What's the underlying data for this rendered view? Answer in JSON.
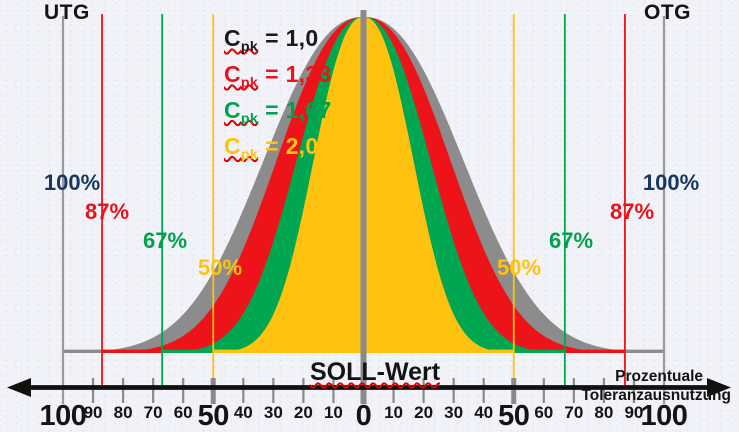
{
  "labels": {
    "utg": "UTG",
    "otg": "OTG",
    "soll_wert": "SOLL-Wert",
    "axis_label_line1": "Prozentuale",
    "axis_label_line2": "Toleranzausnutzung"
  },
  "legend": {
    "symbol": "C",
    "subscript": "pk",
    "equals": "="
  },
  "colors": {
    "axis": "#111111",
    "tick": "#8A8A8A",
    "center_line": "#8A8A8A",
    "squiggle": "#E00000",
    "background": "#F2F3F8",
    "text": "#141414"
  },
  "chart_data": {
    "type": "area",
    "title": "",
    "curve_shape": "bell",
    "peaks_equal_height": true,
    "grid": false,
    "legend_position": "top-center",
    "x_axis": {
      "label_line1": "Prozentuale",
      "label_line2": "Toleranzausnutzung",
      "range": [
        -100,
        100
      ],
      "tick_step": 10,
      "tick_labels": [
        "100",
        "90",
        "80",
        "70",
        "60",
        "50",
        "40",
        "30",
        "20",
        "10",
        "0",
        "10",
        "20",
        "30",
        "40",
        "50",
        "60",
        "70",
        "80",
        "90",
        "100"
      ],
      "major_tick_values": [
        -100,
        -50,
        0,
        50,
        100
      ],
      "center_label": "SOLL-Wert",
      "lower_limit_label": "UTG",
      "upper_limit_label": "OTG"
    },
    "series": [
      {
        "name": "Cpk = 1,0",
        "cpk_label": "= 1,0",
        "cpk_value": 1.0,
        "tolerance_use_pct": 100,
        "tolerance_label": "100%",
        "fill_color": "#8C8C8C",
        "line_color": "#9B9B9B",
        "label_color": "#17375E",
        "legend_color": "#1A1A1A"
      },
      {
        "name": "Cpk = 1,33",
        "cpk_label": "= 1,33",
        "cpk_value": 1.33,
        "tolerance_use_pct": 87,
        "tolerance_label": "87%",
        "fill_color": "#EE1219",
        "line_color": "#EE1219",
        "label_color": "#E8131B",
        "legend_color": "#E8131B"
      },
      {
        "name": "Cpk = 1,67",
        "cpk_label": "= 1,67",
        "cpk_value": 1.67,
        "tolerance_use_pct": 67,
        "tolerance_label": "67%",
        "fill_color": "#00A650",
        "line_color": "#00A650",
        "label_color": "#00A04C",
        "legend_color": "#00A04C"
      },
      {
        "name": "Cpk = 2,0",
        "cpk_label": "= 2,0",
        "cpk_value": 2.0,
        "tolerance_use_pct": 50,
        "tolerance_label": "50%",
        "fill_color": "#FFC20E",
        "line_color": "#FFC20E",
        "label_color": "#FFC20E",
        "legend_color": "#FFC20E"
      }
    ]
  }
}
